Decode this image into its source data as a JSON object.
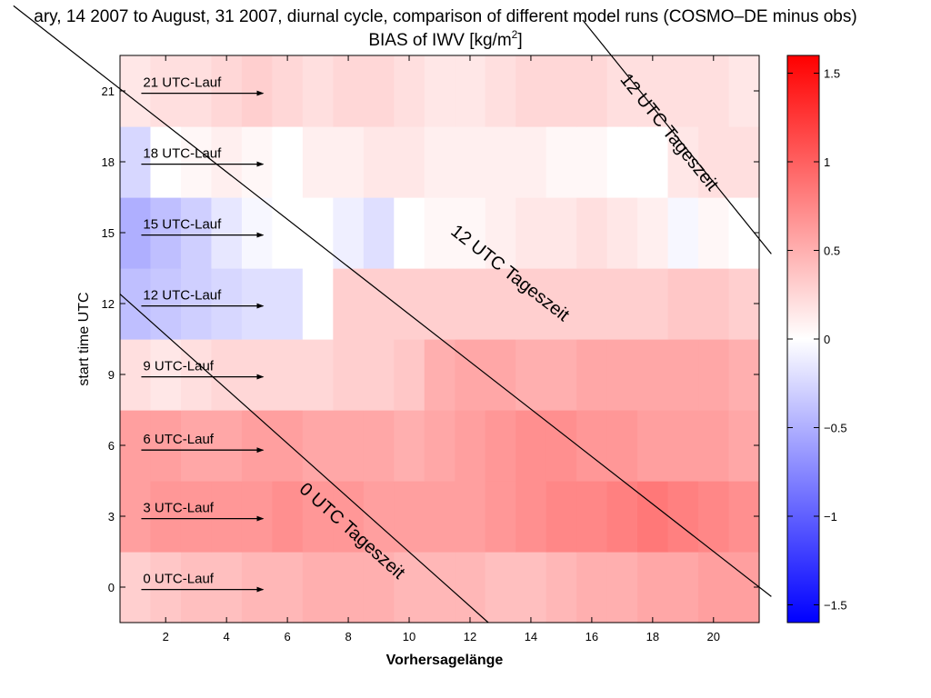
{
  "chart_data": {
    "type": "heatmap",
    "title_line1": "ary, 14 2007 to August, 31 2007, diurnal cycle, comparison of different model runs (COSMO–DE minus obs)",
    "title_line2_main": "BIAS of IWV [kg/m",
    "title_line2_sup": "2",
    "title_line2_end": "]",
    "xlabel": "Vorhersagelänge",
    "ylabel": "start time UTC",
    "x_range": [
      0.5,
      21.5
    ],
    "y_range": [
      -1.5,
      22.5
    ],
    "x_ticks": [
      2,
      4,
      6,
      8,
      10,
      12,
      14,
      16,
      18,
      20
    ],
    "y_ticks": [
      0,
      3,
      6,
      9,
      12,
      15,
      18,
      21
    ],
    "color_range": [
      -1.6,
      1.6
    ],
    "colorbar_ticks": [
      1.5,
      1,
      0.5,
      0,
      -0.5,
      -1,
      -1.5
    ],
    "colorbar_tick_labels": [
      "1.5",
      "1",
      "0.5",
      "0",
      "−0.5",
      "−1",
      "−1.5"
    ],
    "lead_times": [
      1,
      2,
      3,
      4,
      5,
      6,
      7,
      8,
      9,
      10,
      11,
      12,
      13,
      14,
      15,
      16,
      17,
      18,
      19,
      20,
      21
    ],
    "rows": [
      {
        "start": 0,
        "label": "0 UTC-Lauf",
        "values": [
          0.3,
          0.35,
          0.4,
          0.4,
          0.45,
          0.45,
          0.5,
          0.5,
          0.5,
          0.45,
          0.45,
          0.45,
          0.4,
          0.4,
          0.45,
          0.5,
          0.5,
          0.55,
          0.55,
          0.6,
          0.6
        ]
      },
      {
        "start": 3,
        "label": "3 UTC-Lauf",
        "values": [
          0.6,
          0.65,
          0.65,
          0.65,
          0.65,
          0.7,
          0.65,
          0.65,
          0.6,
          0.6,
          0.6,
          0.6,
          0.65,
          0.7,
          0.75,
          0.75,
          0.8,
          0.85,
          0.8,
          0.75,
          0.7
        ]
      },
      {
        "start": 6,
        "label": "6 UTC-Lauf",
        "values": [
          0.6,
          0.6,
          0.55,
          0.55,
          0.6,
          0.6,
          0.55,
          0.55,
          0.55,
          0.5,
          0.55,
          0.6,
          0.65,
          0.7,
          0.7,
          0.65,
          0.65,
          0.6,
          0.6,
          0.6,
          0.55
        ]
      },
      {
        "start": 9,
        "label": "9 UTC-Lauf",
        "values": [
          0.2,
          0.15,
          0.2,
          0.25,
          0.25,
          0.25,
          0.25,
          0.3,
          0.3,
          0.35,
          0.5,
          0.55,
          0.55,
          0.5,
          0.5,
          0.55,
          0.55,
          0.55,
          0.55,
          0.55,
          0.5
        ]
      },
      {
        "start": 12,
        "label": "12 UTC-Lauf",
        "values": [
          -0.4,
          -0.35,
          -0.3,
          -0.25,
          -0.2,
          -0.2,
          0.0,
          0.3,
          0.3,
          0.3,
          0.3,
          0.3,
          0.3,
          0.3,
          0.3,
          0.3,
          0.3,
          0.3,
          0.35,
          0.35,
          0.3
        ]
      },
      {
        "start": 15,
        "label": "15 UTC-Lauf",
        "values": [
          -0.5,
          -0.4,
          -0.3,
          -0.15,
          -0.05,
          0.0,
          0.0,
          -0.1,
          -0.2,
          0.0,
          0.05,
          0.05,
          0.1,
          0.15,
          0.15,
          0.2,
          0.15,
          0.1,
          -0.05,
          0.05,
          0.0
        ]
      },
      {
        "start": 18,
        "label": "18 UTC-Lauf",
        "values": [
          -0.25,
          0.0,
          0.05,
          0.1,
          0.05,
          0.0,
          0.1,
          0.1,
          0.15,
          0.15,
          0.1,
          0.1,
          0.1,
          0.1,
          0.05,
          0.05,
          0.0,
          0.0,
          0.15,
          0.2,
          0.2
        ]
      },
      {
        "start": 21,
        "label": "21 UTC-Lauf",
        "values": [
          0.15,
          0.2,
          0.2,
          0.25,
          0.3,
          0.25,
          0.2,
          0.25,
          0.25,
          0.2,
          0.15,
          0.15,
          0.2,
          0.25,
          0.25,
          0.25,
          0.2,
          0.2,
          0.2,
          0.2,
          0.15
        ]
      }
    ],
    "arrows": [
      {
        "start": 0,
        "y": -0.1,
        "x_from": 1.2,
        "x_to": 5.2
      },
      {
        "start": 3,
        "y": 2.9,
        "x_from": 1.2,
        "x_to": 5.2
      },
      {
        "start": 6,
        "y": 5.8,
        "x_from": 1.2,
        "x_to": 5.2
      },
      {
        "start": 9,
        "y": 8.9,
        "x_from": 1.2,
        "x_to": 5.2
      },
      {
        "start": 12,
        "y": 11.9,
        "x_from": 1.2,
        "x_to": 5.2
      },
      {
        "start": 15,
        "y": 14.9,
        "x_from": 1.2,
        "x_to": 5.2
      },
      {
        "start": 18,
        "y": 17.9,
        "x_from": 1.2,
        "x_to": 5.2
      },
      {
        "start": 21,
        "y": 20.9,
        "x_from": 1.2,
        "x_to": 5.2
      }
    ],
    "diagonal_lines": [
      {
        "label": "12 UTC Tageszeit",
        "from": [
          -3.0,
          24.6
        ],
        "to": [
          21.9,
          -0.4
        ],
        "label_at": [
          13.2,
          13.1
        ]
      },
      {
        "label": "0 UTC Tageszeit",
        "from": [
          0.5,
          12.4
        ],
        "to": [
          12.6,
          -1.5
        ],
        "label_at": [
          8.0,
          2.2
        ]
      },
      {
        "label": "12 UTC Tageszeit",
        "from": [
          15.7,
          24.0
        ],
        "to": [
          21.9,
          14.1
        ],
        "label_at": [
          18.4,
          19.1
        ]
      }
    ]
  }
}
